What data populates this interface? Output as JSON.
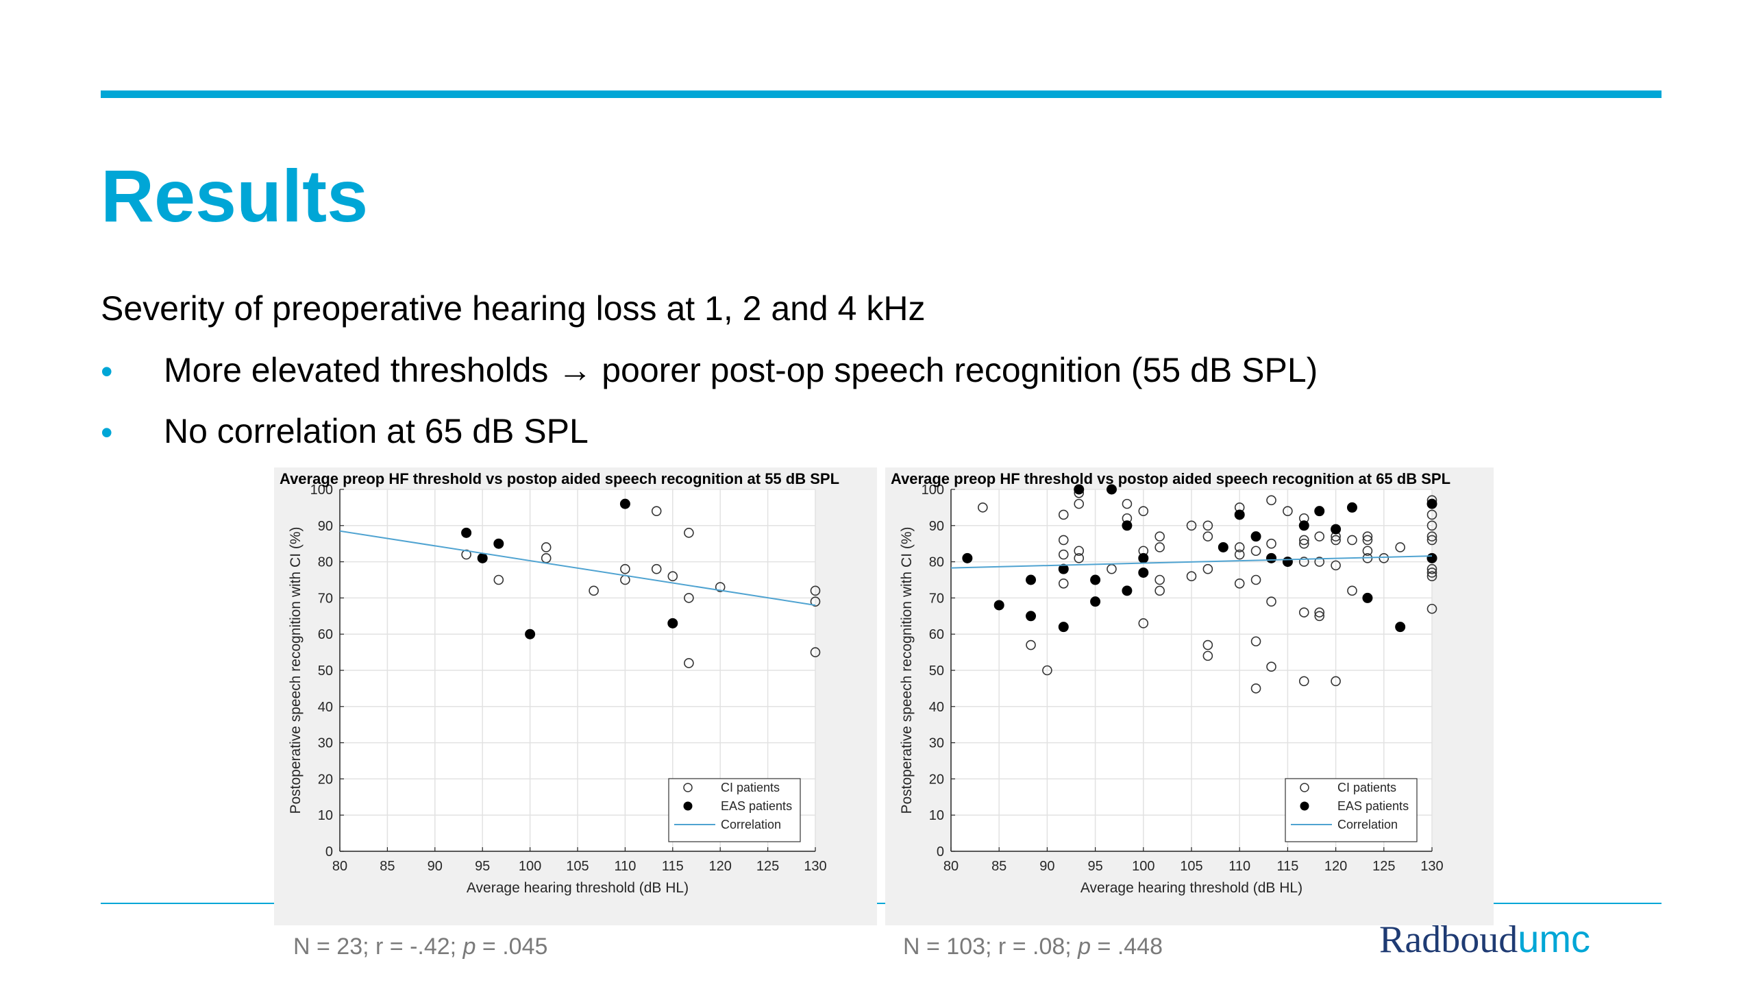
{
  "slide": {
    "title": "Results",
    "subtitle": "Severity of preoperative hearing loss at 1, 2 and 4 kHz",
    "bullets": [
      {
        "text": "More elevated thresholds → poorer post-op speech recognition (55 dB SPL)"
      },
      {
        "text": "No correlation at 65 dB SPL"
      }
    ],
    "bullet_marker": "•",
    "stats_left": {
      "n": "N = 23; r = -.42; ",
      "p_label": "p",
      "p_value": " = .045"
    },
    "stats_right": {
      "n": "N = 103; r = .08; ",
      "p_label": "p",
      "p_value": " = .448"
    },
    "logo": {
      "part1": "Radboud",
      "part2": "umc"
    },
    "colors": {
      "accent": "#00a6d6",
      "logo_dark": "#1f3b73",
      "regression": "#4fa3d1"
    }
  },
  "chart_data": [
    {
      "type": "scatter",
      "title": "Average preop HF threshold vs postop aided speech recognition at 55 dB SPL",
      "xlabel": "Average hearing threshold (dB HL)",
      "ylabel": "Postoperative speech recognition with CI (%)",
      "xlim": [
        80,
        130
      ],
      "ylim": [
        0,
        100
      ],
      "xticks": [
        80,
        85,
        90,
        95,
        100,
        105,
        110,
        115,
        120,
        125,
        130
      ],
      "yticks": [
        0,
        10,
        20,
        30,
        40,
        50,
        60,
        70,
        80,
        90,
        100
      ],
      "grid": true,
      "legend_position": "bottom-right",
      "legend": [
        "CI patients",
        "EAS patients",
        "Correlation"
      ],
      "series": [
        {
          "name": "CI patients",
          "marker": "open-circle",
          "points": [
            [
              93.3,
              82
            ],
            [
              96.7,
              75
            ],
            [
              101.7,
              84
            ],
            [
              101.7,
              81
            ],
            [
              106.7,
              72
            ],
            [
              110,
              78
            ],
            [
              110,
              75
            ],
            [
              113.3,
              94
            ],
            [
              113.3,
              78
            ],
            [
              115,
              76
            ],
            [
              116.7,
              88
            ],
            [
              116.7,
              70
            ],
            [
              116.7,
              52
            ],
            [
              120,
              73
            ],
            [
              130,
              72
            ],
            [
              130,
              69
            ],
            [
              130,
              55
            ]
          ]
        },
        {
          "name": "EAS patients",
          "marker": "filled-circle",
          "points": [
            [
              93.3,
              88
            ],
            [
              95,
              81
            ],
            [
              96.7,
              85
            ],
            [
              100,
              60
            ],
            [
              110,
              96
            ],
            [
              115,
              63
            ]
          ]
        },
        {
          "name": "Correlation",
          "type": "line",
          "points": [
            [
              80,
              88.5
            ],
            [
              130,
              68
            ]
          ]
        }
      ]
    },
    {
      "type": "scatter",
      "title": "Average preop HF threshold vs postop aided speech recognition at 65 dB SPL",
      "xlabel": "Average hearing threshold (dB HL)",
      "ylabel": "Postoperative speech recognition with CI (%)",
      "xlim": [
        80,
        130
      ],
      "ylim": [
        0,
        100
      ],
      "xticks": [
        80,
        85,
        90,
        95,
        100,
        105,
        110,
        115,
        120,
        125,
        130
      ],
      "yticks": [
        0,
        10,
        20,
        30,
        40,
        50,
        60,
        70,
        80,
        90,
        100
      ],
      "grid": true,
      "legend_position": "bottom-right",
      "legend": [
        "CI patients",
        "EAS patients",
        "Correlation"
      ],
      "series": [
        {
          "name": "CI patients",
          "marker": "open-circle",
          "points": [
            [
              83.3,
              95
            ],
            [
              88.3,
              57
            ],
            [
              90,
              50
            ],
            [
              91.7,
              93
            ],
            [
              91.7,
              86
            ],
            [
              91.7,
              82
            ],
            [
              91.7,
              74
            ],
            [
              93.3,
              99
            ],
            [
              93.3,
              96
            ],
            [
              93.3,
              83
            ],
            [
              93.3,
              81
            ],
            [
              96.7,
              78
            ],
            [
              98.3,
              96
            ],
            [
              98.3,
              92
            ],
            [
              100,
              94
            ],
            [
              100,
              83
            ],
            [
              100,
              63
            ],
            [
              101.7,
              87
            ],
            [
              101.7,
              84
            ],
            [
              101.7,
              75
            ],
            [
              101.7,
              72
            ],
            [
              105,
              90
            ],
            [
              105,
              76
            ],
            [
              106.7,
              90
            ],
            [
              106.7,
              87
            ],
            [
              106.7,
              78
            ],
            [
              106.7,
              57
            ],
            [
              106.7,
              54
            ],
            [
              110,
              95
            ],
            [
              110,
              84
            ],
            [
              110,
              82
            ],
            [
              110,
              74
            ],
            [
              111.7,
              83
            ],
            [
              111.7,
              75
            ],
            [
              111.7,
              58
            ],
            [
              111.7,
              45
            ],
            [
              113.3,
              97
            ],
            [
              113.3,
              85
            ],
            [
              113.3,
              69
            ],
            [
              113.3,
              51
            ],
            [
              115,
              94
            ],
            [
              116.7,
              92
            ],
            [
              116.7,
              86
            ],
            [
              116.7,
              85
            ],
            [
              116.7,
              80
            ],
            [
              116.7,
              66
            ],
            [
              116.7,
              47
            ],
            [
              118.3,
              87
            ],
            [
              118.3,
              80
            ],
            [
              118.3,
              66
            ],
            [
              118.3,
              65
            ],
            [
              120,
              87
            ],
            [
              120,
              86
            ],
            [
              120,
              79
            ],
            [
              120,
              47
            ],
            [
              121.7,
              86
            ],
            [
              121.7,
              72
            ],
            [
              123.3,
              87
            ],
            [
              123.3,
              86
            ],
            [
              123.3,
              83
            ],
            [
              123.3,
              81
            ],
            [
              125,
              81
            ],
            [
              126.7,
              84
            ],
            [
              130,
              97
            ],
            [
              130,
              93
            ],
            [
              130,
              90
            ],
            [
              130,
              87
            ],
            [
              130,
              86
            ],
            [
              130,
              78
            ],
            [
              130,
              77
            ],
            [
              130,
              76
            ],
            [
              130,
              67
            ]
          ]
        },
        {
          "name": "EAS patients",
          "marker": "filled-circle",
          "points": [
            [
              81.7,
              81
            ],
            [
              85,
              68
            ],
            [
              88.3,
              75
            ],
            [
              88.3,
              65
            ],
            [
              91.7,
              78
            ],
            [
              91.7,
              62
            ],
            [
              93.3,
              100
            ],
            [
              95,
              75
            ],
            [
              95,
              69
            ],
            [
              96.7,
              100
            ],
            [
              98.3,
              90
            ],
            [
              98.3,
              72
            ],
            [
              100,
              81
            ],
            [
              100,
              77
            ],
            [
              108.3,
              84
            ],
            [
              110,
              93
            ],
            [
              111.7,
              87
            ],
            [
              113.3,
              81
            ],
            [
              115,
              80
            ],
            [
              116.7,
              90
            ],
            [
              118.3,
              94
            ],
            [
              120,
              89
            ],
            [
              121.7,
              95
            ],
            [
              123.3,
              70
            ],
            [
              126.7,
              62
            ],
            [
              130,
              96
            ],
            [
              130,
              81
            ]
          ]
        },
        {
          "name": "Correlation",
          "type": "line",
          "points": [
            [
              80,
              78.3
            ],
            [
              130,
              81.6
            ]
          ]
        }
      ]
    }
  ]
}
